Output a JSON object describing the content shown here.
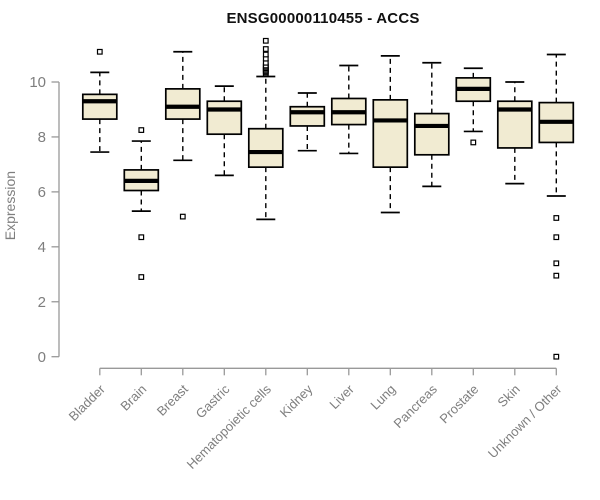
{
  "chart_data": {
    "type": "boxplot",
    "title": "ENSG00000110455 - ACCS",
    "ylabel": "Expression",
    "xlabel": "",
    "ylim": [
      0,
      11.6
    ],
    "yticks": [
      0,
      2,
      4,
      6,
      8,
      10
    ],
    "grid": false,
    "legend_position": "none",
    "categories": [
      "Bladder",
      "Brain",
      "Breast",
      "Gastric",
      "Hematopoietic cells",
      "Kidney",
      "Liver",
      "Lung",
      "Pancreas",
      "Prostate",
      "Skin",
      "Unknown / Other"
    ],
    "series": [
      {
        "name": "Bladder",
        "whisker_low": 7.45,
        "q1": 8.65,
        "median": 9.3,
        "q3": 9.55,
        "whisker_high": 10.35,
        "outliers": [
          11.1
        ]
      },
      {
        "name": "Brain",
        "whisker_low": 5.3,
        "q1": 6.05,
        "median": 6.4,
        "q3": 6.8,
        "whisker_high": 7.85,
        "outliers": [
          8.25,
          4.35,
          2.9
        ]
      },
      {
        "name": "Breast",
        "whisker_low": 7.15,
        "q1": 8.65,
        "median": 9.1,
        "q3": 9.75,
        "whisker_high": 11.1,
        "outliers": [
          5.1
        ]
      },
      {
        "name": "Gastric",
        "whisker_low": 6.6,
        "q1": 8.1,
        "median": 9.0,
        "q3": 9.3,
        "whisker_high": 9.85,
        "outliers": []
      },
      {
        "name": "Hematopoietic cells",
        "whisker_low": 5.0,
        "q1": 6.9,
        "median": 7.45,
        "q3": 8.3,
        "whisker_high": 10.2,
        "outliers": [
          10.3,
          10.35,
          10.4,
          10.45,
          10.5,
          10.55,
          10.6,
          10.7,
          10.85,
          11.0,
          11.2,
          11.5
        ]
      },
      {
        "name": "Kidney",
        "whisker_low": 7.5,
        "q1": 8.4,
        "median": 8.9,
        "q3": 9.1,
        "whisker_high": 9.6,
        "outliers": []
      },
      {
        "name": "Liver",
        "whisker_low": 7.4,
        "q1": 8.45,
        "median": 8.9,
        "q3": 9.4,
        "whisker_high": 10.6,
        "outliers": []
      },
      {
        "name": "Lung",
        "whisker_low": 5.25,
        "q1": 6.9,
        "median": 8.6,
        "q3": 9.35,
        "whisker_high": 10.95,
        "outliers": []
      },
      {
        "name": "Pancreas",
        "whisker_low": 6.2,
        "q1": 7.35,
        "median": 8.4,
        "q3": 8.85,
        "whisker_high": 10.7,
        "outliers": []
      },
      {
        "name": "Prostate",
        "whisker_low": 8.2,
        "q1": 9.3,
        "median": 9.75,
        "q3": 10.15,
        "whisker_high": 10.5,
        "outliers": [
          7.8
        ]
      },
      {
        "name": "Skin",
        "whisker_low": 6.3,
        "q1": 7.6,
        "median": 9.0,
        "q3": 9.3,
        "whisker_high": 10.0,
        "outliers": []
      },
      {
        "name": "Unknown / Other",
        "whisker_low": 5.85,
        "q1": 7.8,
        "median": 8.55,
        "q3": 9.25,
        "whisker_high": 11.0,
        "outliers": [
          5.05,
          4.35,
          3.4,
          2.95,
          0.0
        ]
      }
    ],
    "colors": {
      "box_fill": "#F1EBD2",
      "box_stroke": "#000000",
      "median": "#000000",
      "axis": "#999999",
      "tick_text": "#7E7E7E",
      "title_text": "#111111",
      "background": "#FFFFFF"
    }
  }
}
